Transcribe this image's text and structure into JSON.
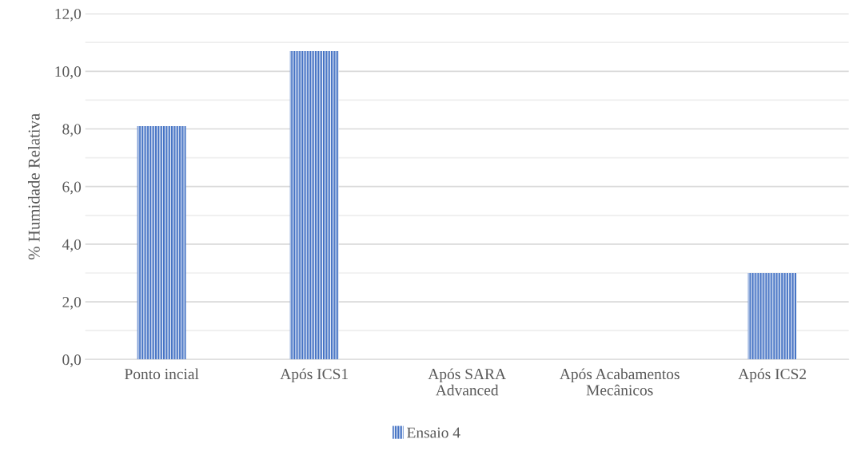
{
  "chart_data": {
    "type": "bar",
    "ylabel": "% Humidade Relativa",
    "categories": [
      "Ponto incial",
      "Após ICS1",
      "Após SARA\nAdvanced",
      "Após Acabamentos\nMecânicos",
      "Após ICS2"
    ],
    "series": [
      {
        "name": "Ensaio 4",
        "color": "#4472c4",
        "values": [
          8.1,
          10.7,
          null,
          null,
          3.0
        ]
      }
    ],
    "ylim": [
      0,
      12
    ],
    "yticks": [
      {
        "value": 0,
        "label": "0,0"
      },
      {
        "value": 1,
        "label": null
      },
      {
        "value": 2,
        "label": "2,0"
      },
      {
        "value": 3,
        "label": null
      },
      {
        "value": 4,
        "label": "4,0"
      },
      {
        "value": 5,
        "label": null
      },
      {
        "value": 6,
        "label": "6,0"
      },
      {
        "value": 7,
        "label": null
      },
      {
        "value": 8,
        "label": "8,0"
      },
      {
        "value": 9,
        "label": null
      },
      {
        "value": 10,
        "label": "10,0"
      },
      {
        "value": 11,
        "label": null
      },
      {
        "value": 12,
        "label": "12,0"
      }
    ],
    "grid": "y",
    "legend": "bottom"
  }
}
